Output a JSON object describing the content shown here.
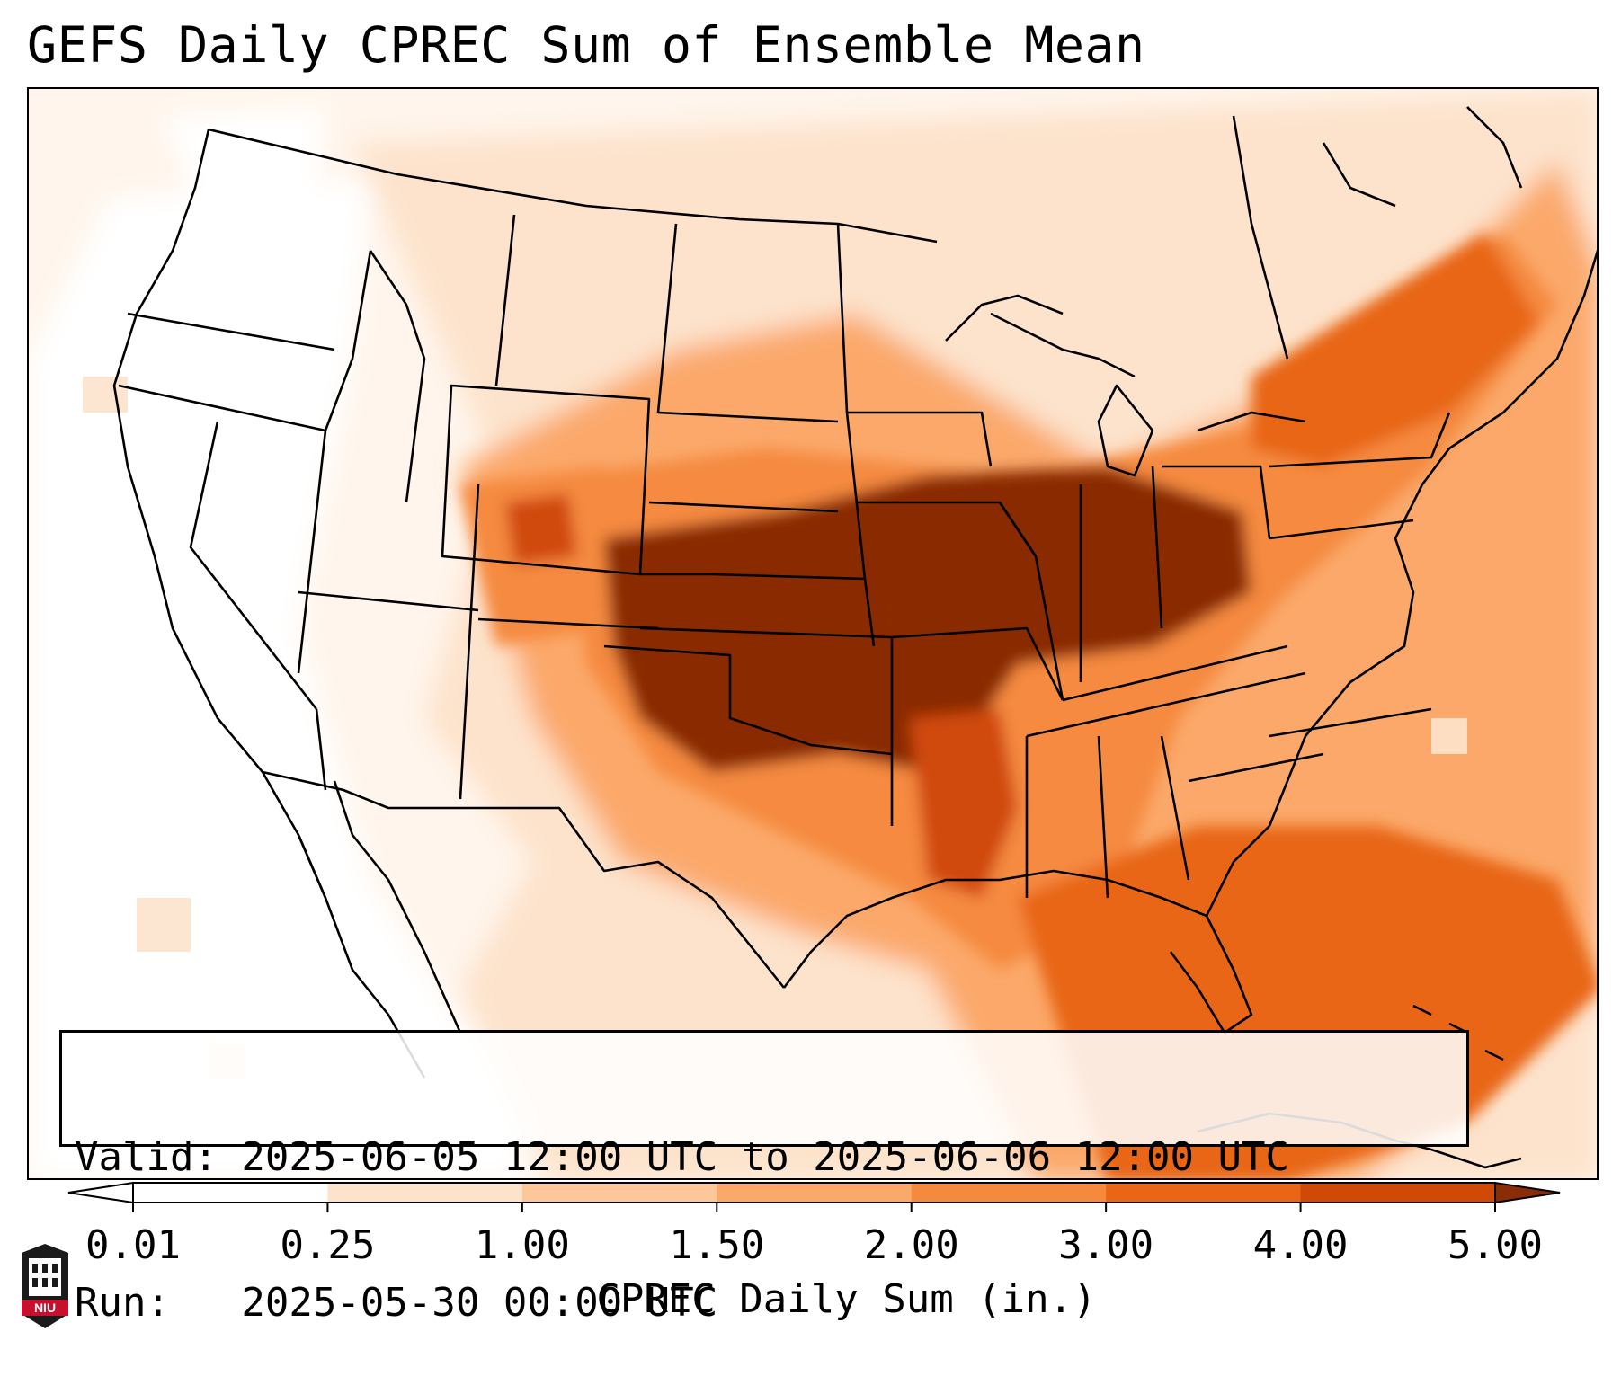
{
  "title": "GEFS Daily CPREC Sum of Ensemble Mean",
  "info": {
    "valid_line": "Valid: 2025-06-05 12:00 UTC to 2025-06-06 12:00 UTC",
    "run_line": "Run:   2025-05-30 00:00 UTC"
  },
  "colorbar": {
    "label": "CPREC Daily Sum (in.)",
    "ticks": [
      "0.01",
      "0.25",
      "1.00",
      "1.50",
      "2.00",
      "3.00",
      "4.00",
      "5.00"
    ],
    "colors": [
      "#ffffff",
      "#fde3cc",
      "#fdc79c",
      "#fba86b",
      "#f58a3f",
      "#e86616",
      "#d04907",
      "#8a2c06"
    ]
  },
  "logo": {
    "text": "NIU"
  }
}
